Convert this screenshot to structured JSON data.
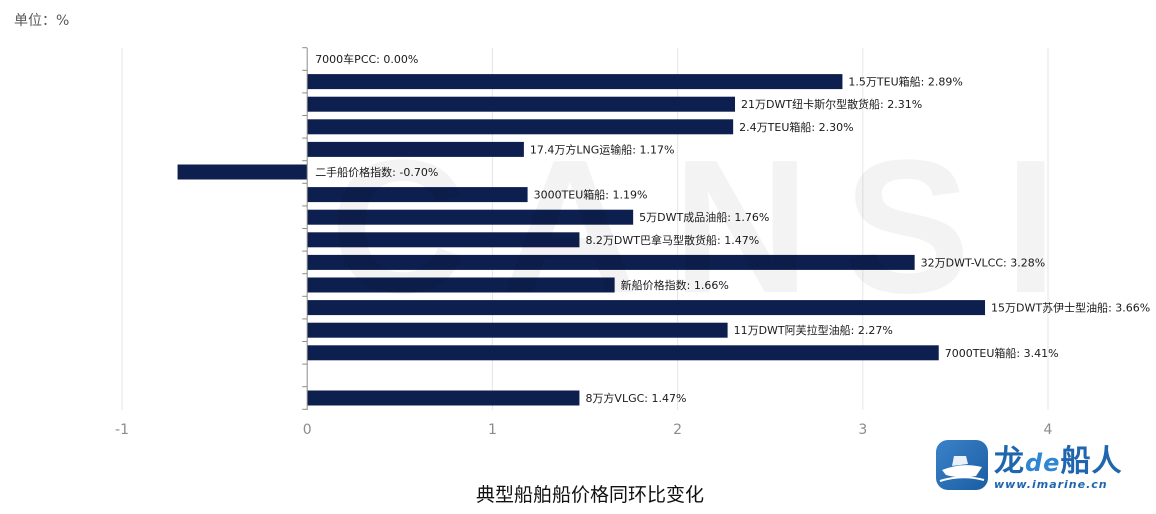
{
  "unit_label": "单位：%",
  "chart_data": {
    "type": "bar",
    "orientation": "horizontal",
    "title": "典型船舶船价格同环比变化",
    "categories": [
      "7000车PCC",
      "1.5万TEU箱船",
      "21万DWT纽卡斯尔型散货船",
      "2.4万TEU箱船",
      "17.4万方LNG运输船",
      "二手船价格指数",
      "3000TEU箱船",
      "5万DWT成品油船",
      "8.2万DWT巴拿马型散货船",
      "32万DWT-VLCC",
      "新船价格指数",
      "15万DWT苏伊士型油船",
      "11万DWT阿芙拉型油船",
      "7000TEU箱船",
      "",
      "8万方VLGC"
    ],
    "values": [
      0.0,
      2.89,
      2.31,
      2.3,
      1.17,
      -0.7,
      1.19,
      1.76,
      1.47,
      3.28,
      1.66,
      3.66,
      2.27,
      3.41,
      null,
      1.47
    ],
    "data_labels": [
      "7000车PCC: 0.00%",
      "1.5万TEU箱船: 2.89%",
      "21万DWT纽卡斯尔型散货船: 2.31%",
      "2.4万TEU箱船: 2.30%",
      "17.4万方LNG运输船: 1.17%",
      "二手船价格指数: -0.70%",
      "3000TEU箱船: 1.19%",
      "5万DWT成品油船: 1.76%",
      "8.2万DWT巴拿马型散货船: 1.47%",
      "32万DWT-VLCC: 3.28%",
      "新船价格指数: 1.66%",
      "15万DWT苏伊士型油船: 3.66%",
      "11万DWT阿芙拉型油船: 2.27%",
      "7000TEU箱船: 3.41%",
      "",
      "8万方VLGC: 1.47%"
    ],
    "xlim": [
      -1,
      4
    ],
    "xticks": [
      "-1",
      "0",
      "1",
      "2",
      "3",
      "4"
    ],
    "grid": true,
    "bar_color": "#0d1f4e"
  },
  "watermark": "CANSI",
  "logo": {
    "brand_a": "龙",
    "brand_b": "de",
    "brand_c": "船人",
    "site": "www.imarine.cn"
  }
}
